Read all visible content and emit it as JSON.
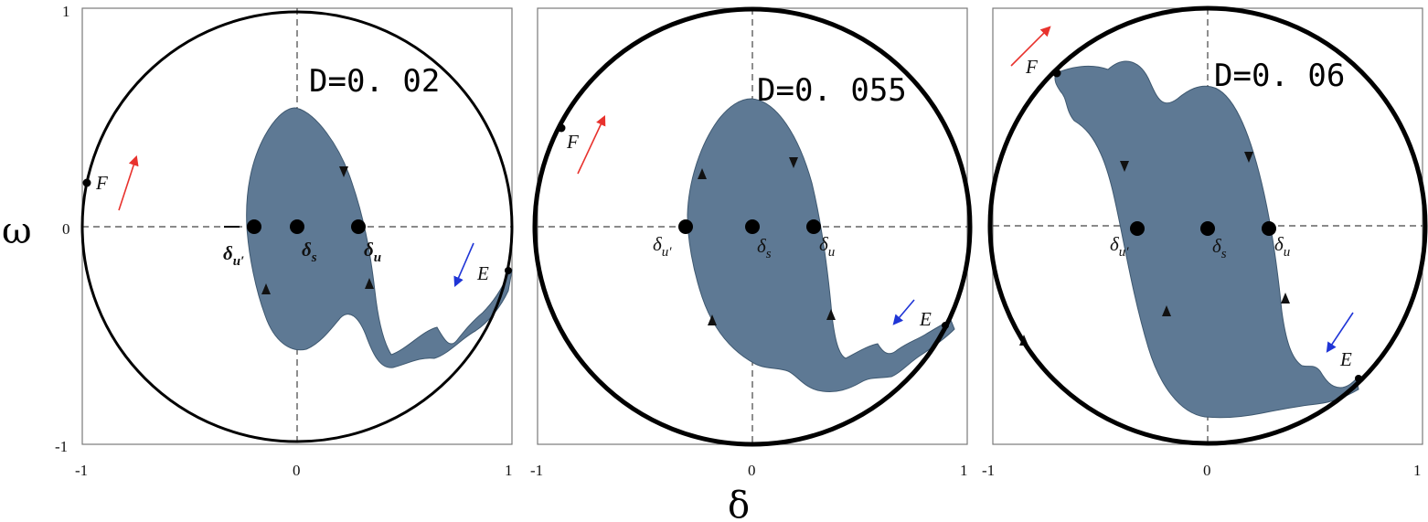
{
  "y_axis_label": "ω",
  "x_axis_label": "δ",
  "colors": {
    "region": "#5e7994",
    "arrow_F": "#e8322d",
    "arrow_E": "#1f35d6"
  },
  "panels": [
    {
      "d_label": "D=0. 02",
      "ticks": {
        "y_top": "1",
        "y_mid": "0",
        "y_bottom": "-1",
        "x_left": "-1",
        "x_mid": "0",
        "x_right": "1"
      },
      "points": {
        "u_prime": "δ",
        "u_prime_sub": "u′",
        "s": "δ",
        "s_sub": "s",
        "u": "δ",
        "u_sub": "u"
      },
      "boundary_points": {
        "F": "F",
        "E": "E"
      }
    },
    {
      "d_label": "D=0. 055",
      "ticks": {
        "x_left": "-1",
        "x_mid": "0",
        "x_right": "1"
      },
      "points": {
        "u_prime": "δ",
        "u_prime_sub": "u′",
        "s": "δ",
        "s_sub": "s",
        "u": "δ",
        "u_sub": "u"
      },
      "boundary_points": {
        "F": "F",
        "E": "E"
      }
    },
    {
      "d_label": "D=0. 06",
      "ticks": {
        "x_left": "-1",
        "x_mid": "0",
        "x_right": "1"
      },
      "points": {
        "u_prime": "δ",
        "u_prime_sub": "u′",
        "s": "δ",
        "s_sub": "s",
        "u": "δ",
        "u_sub": "u"
      },
      "boundary_points": {
        "F": "F",
        "E": "E"
      }
    }
  ]
}
